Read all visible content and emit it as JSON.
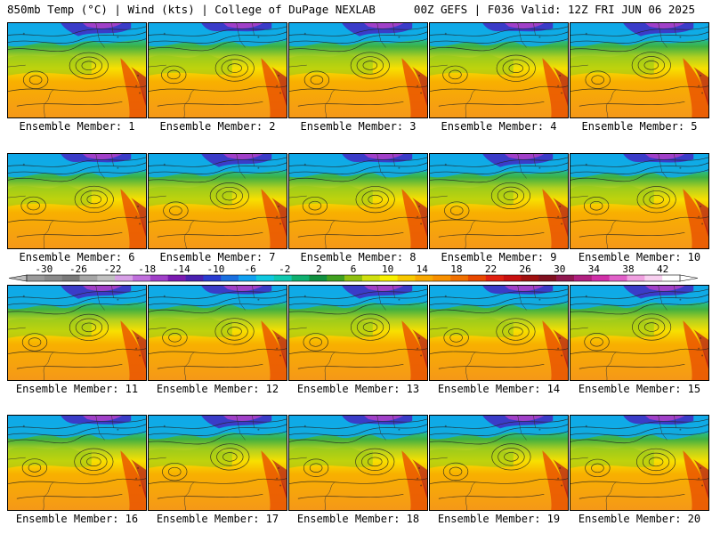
{
  "header": {
    "title_left": "850mb Temp (°C) | Wind (kts) | College of DuPage NEXLAB",
    "title_right": "00Z GEFS | F036 Valid: 12Z FRI JUN 06 2025"
  },
  "members": [
    {
      "label": "Ensemble Member: 1"
    },
    {
      "label": "Ensemble Member: 2"
    },
    {
      "label": "Ensemble Member: 3"
    },
    {
      "label": "Ensemble Member: 4"
    },
    {
      "label": "Ensemble Member: 5"
    },
    {
      "label": "Ensemble Member: 6"
    },
    {
      "label": "Ensemble Member: 7"
    },
    {
      "label": "Ensemble Member: 8"
    },
    {
      "label": "Ensemble Member: 9"
    },
    {
      "label": "Ensemble Member: 10"
    },
    {
      "label": "Ensemble Member: 11"
    },
    {
      "label": "Ensemble Member: 12"
    },
    {
      "label": "Ensemble Member: 13"
    },
    {
      "label": "Ensemble Member: 14"
    },
    {
      "label": "Ensemble Member: 15"
    },
    {
      "label": "Ensemble Member: 16"
    },
    {
      "label": "Ensemble Member: 17"
    },
    {
      "label": "Ensemble Member: 18"
    },
    {
      "label": "Ensemble Member: 19"
    },
    {
      "label": "Ensemble Member: 20"
    }
  ],
  "colorbar": {
    "ticks": [
      "-30",
      "-26",
      "-22",
      "-18",
      "-14",
      "-10",
      "-6",
      "-2",
      "2",
      "6",
      "10",
      "14",
      "18",
      "22",
      "26",
      "30",
      "34",
      "38",
      "42"
    ],
    "colors": [
      "#9a9a9a",
      "#8a8a8a",
      "#7a7a7a",
      "#a5a5a5",
      "#c0c0c0",
      "#d7a0e6",
      "#c070dc",
      "#a040c8",
      "#7a1ab0",
      "#4a20b0",
      "#2a3cd0",
      "#1a70e0",
      "#10a0f0",
      "#10c8e0",
      "#10c8b0",
      "#10b070",
      "#109040",
      "#40a020",
      "#90c010",
      "#d0e010",
      "#f8f000",
      "#f8c800",
      "#f8a800",
      "#f89000",
      "#f07000",
      "#e84800",
      "#e02010",
      "#c81010",
      "#a01010",
      "#801020",
      "#901850",
      "#b02080",
      "#d030a8",
      "#e060c8",
      "#f0a0e0",
      "#f8d0f0",
      "#ffffff"
    ]
  }
}
